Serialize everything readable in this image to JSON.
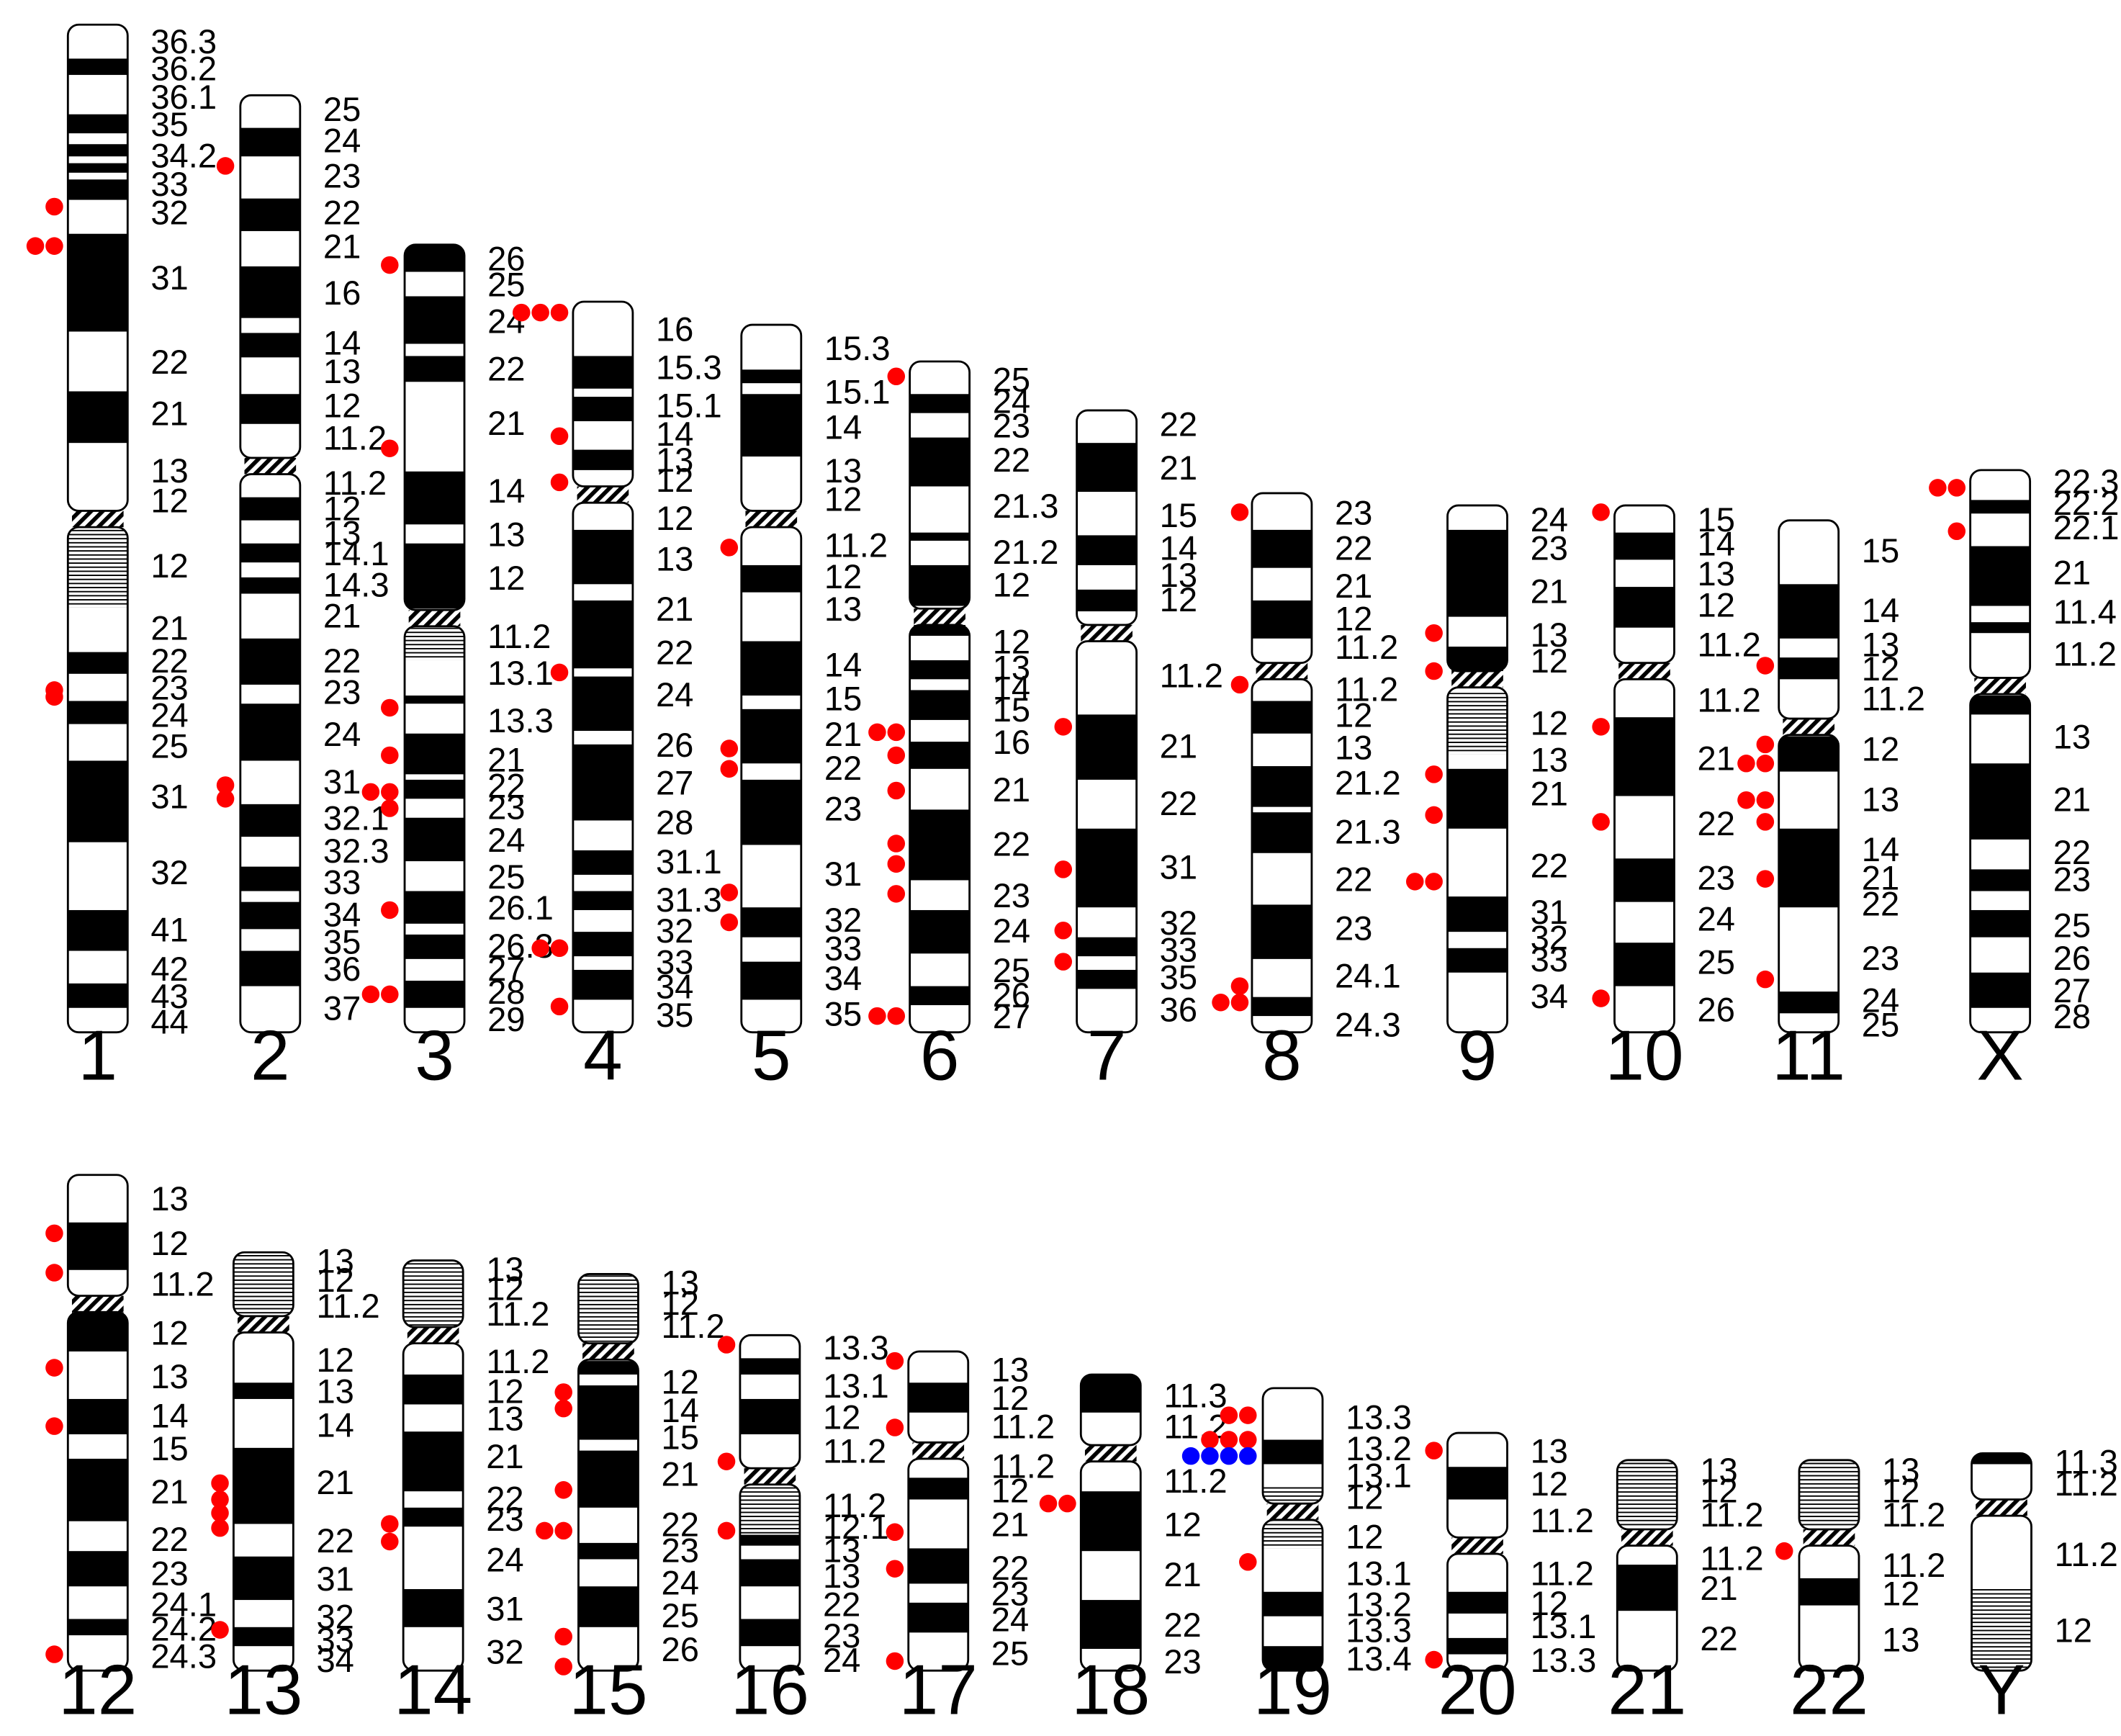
{
  "colors": {
    "background": "#ffffff",
    "marker_red": "#ff0000",
    "marker_blue": "#0000ff",
    "band_dark": "#000000"
  },
  "chromosomes": [
    {
      "name": "1",
      "bands": [
        "36.3",
        "36.2",
        "36.1",
        "35",
        "34.2",
        "33",
        "32",
        "31",
        "22",
        "21",
        "13",
        "12",
        "12",
        "21",
        "22",
        "23",
        "24",
        "25",
        "31",
        "32",
        "41",
        "42",
        "43",
        "44"
      ],
      "markers": {
        "red": 5,
        "blue": 0
      }
    },
    {
      "name": "2",
      "bands": [
        "25",
        "24",
        "23",
        "22",
        "21",
        "16",
        "14",
        "13",
        "12",
        "11.2",
        "11.2",
        "12",
        "13",
        "14.1",
        "14.3",
        "21",
        "22",
        "23",
        "24",
        "31",
        "32.1",
        "32.3",
        "33",
        "34",
        "35",
        "36",
        "37"
      ],
      "markers": {
        "red": 3,
        "blue": 0
      }
    },
    {
      "name": "3",
      "bands": [
        "26",
        "25",
        "24",
        "22",
        "21",
        "14",
        "13",
        "12",
        "11.2",
        "13.1",
        "13.3",
        "21",
        "22",
        "23",
        "24",
        "25",
        "26.1",
        "26.3",
        "27",
        "28",
        "29"
      ],
      "markers": {
        "red": 11,
        "blue": 0
      }
    },
    {
      "name": "4",
      "bands": [
        "16",
        "15.3",
        "15.1",
        "14",
        "13",
        "12",
        "12",
        "13",
        "21",
        "22",
        "24",
        "26",
        "27",
        "28",
        "31.1",
        "31.3",
        "32",
        "33",
        "34",
        "35"
      ],
      "markers": {
        "red": 8,
        "blue": 0
      }
    },
    {
      "name": "5",
      "bands": [
        "15.3",
        "15.1",
        "14",
        "13",
        "12",
        "11.2",
        "12",
        "13",
        "14",
        "15",
        "21",
        "22",
        "23",
        "31",
        "32",
        "33",
        "34",
        "35"
      ],
      "markers": {
        "red": 5,
        "blue": 0
      }
    },
    {
      "name": "6",
      "bands": [
        "25",
        "24",
        "23",
        "22",
        "21.3",
        "21.2",
        "12",
        "12",
        "13",
        "14",
        "15",
        "16",
        "21",
        "22",
        "23",
        "24",
        "25",
        "26",
        "27"
      ],
      "markers": {
        "red": 10,
        "blue": 0
      }
    },
    {
      "name": "7",
      "bands": [
        "22",
        "21",
        "15",
        "14",
        "13",
        "12",
        "11.2",
        "21",
        "22",
        "31",
        "32",
        "33",
        "35",
        "36"
      ],
      "markers": {
        "red": 4,
        "blue": 0
      }
    },
    {
      "name": "8",
      "bands": [
        "23",
        "22",
        "21",
        "12",
        "11.2",
        "11.2",
        "12",
        "13",
        "21.2",
        "21.3",
        "22",
        "23",
        "24.1",
        "24.3"
      ],
      "markers": {
        "red": 5,
        "blue": 0
      }
    },
    {
      "name": "9",
      "bands": [
        "24",
        "23",
        "21",
        "13",
        "12",
        "12",
        "13",
        "21",
        "22",
        "31",
        "32",
        "33",
        "34"
      ],
      "markers": {
        "red": 6,
        "blue": 0
      }
    },
    {
      "name": "10",
      "bands": [
        "15",
        "14",
        "13",
        "12",
        "11.2",
        "11.2",
        "21",
        "22",
        "23",
        "24",
        "25",
        "26"
      ],
      "markers": {
        "red": 4,
        "blue": 0
      }
    },
    {
      "name": "11",
      "bands": [
        "15",
        "14",
        "13",
        "12",
        "11.2",
        "12",
        "13",
        "14",
        "21",
        "22",
        "23",
        "24",
        "25"
      ],
      "markers": {
        "red": 9,
        "blue": 0
      }
    },
    {
      "name": "X",
      "bands": [
        "22.3",
        "22.2",
        "22.1",
        "21",
        "11.4",
        "11.2",
        "13",
        "21",
        "22",
        "23",
        "25",
        "26",
        "27",
        "28"
      ],
      "markers": {
        "red": 3,
        "blue": 0
      }
    },
    {
      "name": "12",
      "bands": [
        "13",
        "12",
        "11.2",
        "12",
        "13",
        "14",
        "15",
        "21",
        "22",
        "23",
        "24.1",
        "24.2",
        "24.3"
      ],
      "markers": {
        "red": 5,
        "blue": 0
      }
    },
    {
      "name": "13",
      "bands": [
        "13",
        "12",
        "11.2",
        "12",
        "13",
        "14",
        "21",
        "22",
        "31",
        "32",
        "33",
        "34"
      ],
      "markers": {
        "red": 5,
        "blue": 0
      }
    },
    {
      "name": "14",
      "bands": [
        "13",
        "12",
        "11.2",
        "11.2",
        "12",
        "13",
        "21",
        "22",
        "23",
        "24",
        "31",
        "32"
      ],
      "markers": {
        "red": 2,
        "blue": 0
      }
    },
    {
      "name": "15",
      "bands": [
        "13",
        "12",
        "11.2",
        "12",
        "14",
        "15",
        "21",
        "22",
        "23",
        "24",
        "25",
        "26"
      ],
      "markers": {
        "red": 7,
        "blue": 0
      }
    },
    {
      "name": "16",
      "bands": [
        "13.3",
        "13.1",
        "12",
        "11.2",
        "11.2",
        "12.1",
        "13",
        "13",
        "22",
        "23",
        "24"
      ],
      "markers": {
        "red": 3,
        "blue": 0
      }
    },
    {
      "name": "17",
      "bands": [
        "13",
        "12",
        "11.2",
        "11.2",
        "12",
        "21",
        "22",
        "23",
        "24",
        "25"
      ],
      "markers": {
        "red": 5,
        "blue": 0
      }
    },
    {
      "name": "18",
      "bands": [
        "11.3",
        "11.2",
        "11.2",
        "12",
        "21",
        "22",
        "23"
      ],
      "markers": {
        "red": 2,
        "blue": 0
      }
    },
    {
      "name": "19",
      "bands": [
        "13.3",
        "13.2",
        "13.1",
        "12",
        "12",
        "13.1",
        "13.2",
        "13.3",
        "13.4"
      ],
      "markers": {
        "red": 6,
        "blue": 4
      }
    },
    {
      "name": "20",
      "bands": [
        "13",
        "12",
        "11.2",
        "11.2",
        "12",
        "13.1",
        "13.3"
      ],
      "markers": {
        "red": 2,
        "blue": 0
      }
    },
    {
      "name": "21",
      "bands": [
        "13",
        "12",
        "11.2",
        "11.2",
        "21",
        "22"
      ],
      "markers": {
        "red": 0,
        "blue": 0
      }
    },
    {
      "name": "22",
      "bands": [
        "13",
        "12",
        "11.2",
        "11.2",
        "12",
        "13"
      ],
      "markers": {
        "red": 1,
        "blue": 0
      }
    },
    {
      "name": "Y",
      "bands": [
        "11.3",
        "11.2",
        "11.2",
        "12"
      ],
      "markers": {
        "red": 0,
        "blue": 0
      }
    }
  ]
}
